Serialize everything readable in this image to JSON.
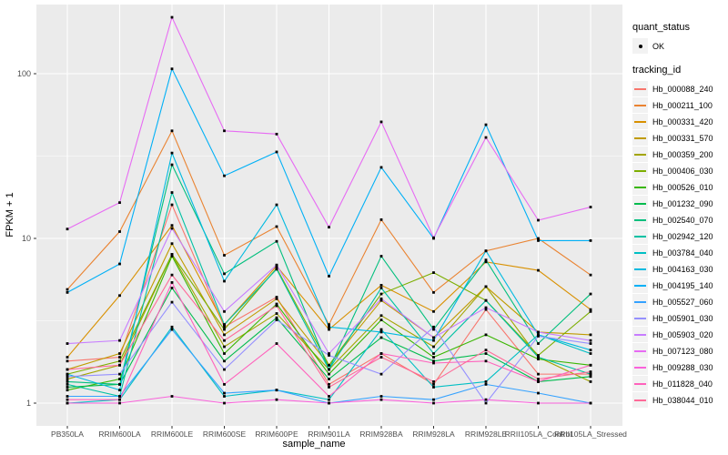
{
  "legend": {
    "quant_status_title": "quant_status",
    "ok_label": "OK",
    "tracking_title": "tracking_id"
  },
  "chart_data": {
    "type": "line",
    "xlabel": "sample_name",
    "ylabel": "FPKM + 1",
    "y_scale": "log10",
    "y_ticks": [
      "1",
      "10",
      "100"
    ],
    "y_minor_ticks": [
      3.162,
      31.62
    ],
    "ylim": [
      0.93,
      280
    ],
    "panel_bg": "#EBEBEB",
    "grid_color": "#FFFFFF",
    "point_color": "#000000",
    "tick_label_color": "#4d4d4d",
    "legend_position": "right",
    "categories": [
      "PB350LA",
      "RRIM600LA",
      "RRIM600LE",
      "RRIM600SE",
      "RRIM600PE",
      "RRIM901LA",
      "RRIM928BA",
      "RRIM928LA",
      "RRIM928LE",
      "RRII105LA_Control",
      "RRII105LA_Stressed"
    ],
    "series": [
      {
        "name": "Hb_000088_240",
        "color": "#F8766D",
        "values": [
          1.8,
          1.9,
          16,
          2.9,
          4.4,
          1.3,
          2.0,
          1.3,
          3.7,
          1.5,
          1.5
        ]
      },
      {
        "name": "Hb_000211_100",
        "color": "#EA8331",
        "values": [
          4.9,
          11,
          45,
          7.9,
          11.8,
          3.0,
          13,
          4.7,
          8.4,
          10,
          6.0
        ]
      },
      {
        "name": "Hb_000331_420",
        "color": "#D89000",
        "values": [
          1.9,
          4.5,
          12,
          3.0,
          6.8,
          2.8,
          5.2,
          3.6,
          7.2,
          6.4,
          3.7
        ]
      },
      {
        "name": "Hb_000331_570",
        "color": "#C09B00",
        "values": [
          1.6,
          2.0,
          9.3,
          2.6,
          4.3,
          1.7,
          4.2,
          2.5,
          5.1,
          2.7,
          2.6
        ]
      },
      {
        "name": "Hb_000359_200",
        "color": "#A3A500",
        "values": [
          1.4,
          1.7,
          8.0,
          2.2,
          3.5,
          1.6,
          3.4,
          2.2,
          5.1,
          1.9,
          1.35
        ]
      },
      {
        "name": "Hb_000406_030",
        "color": "#7CAE00",
        "values": [
          1.5,
          1.8,
          8.0,
          2.8,
          6.6,
          1.7,
          4.6,
          6.2,
          4.2,
          1.95,
          3.6
        ]
      },
      {
        "name": "Hb_000526_010",
        "color": "#39B600",
        "values": [
          1.2,
          1.4,
          7.8,
          2.0,
          4.0,
          1.5,
          3.2,
          1.9,
          2.6,
          1.85,
          1.7
        ]
      },
      {
        "name": "Hb_001232_090",
        "color": "#00BB4E",
        "values": [
          1.25,
          1.3,
          5.0,
          1.8,
          3.3,
          1.4,
          2.5,
          1.8,
          2.0,
          1.35,
          1.45
        ]
      },
      {
        "name": "Hb_002540_070",
        "color": "#00BF7D",
        "values": [
          1.35,
          1.3,
          28,
          6.1,
          9.6,
          1.6,
          7.8,
          2.8,
          7.4,
          2.3,
          4.6
        ]
      },
      {
        "name": "Hb_002942_120",
        "color": "#00C1A3",
        "values": [
          1.3,
          1.1,
          19,
          3.0,
          6.5,
          1.6,
          5.0,
          2.0,
          4.2,
          1.9,
          1.5
        ]
      },
      {
        "name": "Hb_003784_040",
        "color": "#00BFC4",
        "values": [
          1.0,
          1.05,
          2.9,
          1.1,
          1.2,
          1.05,
          2.8,
          1.25,
          1.35,
          2.6,
          2.0
        ]
      },
      {
        "name": "Hb_004163_030",
        "color": "#00BAE0",
        "values": [
          1.5,
          1.2,
          33,
          5.5,
          16,
          2.9,
          2.7,
          2.4,
          8.4,
          2.6,
          2.1
        ]
      },
      {
        "name": "Hb_004195_140",
        "color": "#00B0F6",
        "values": [
          4.7,
          7.0,
          107,
          24,
          33.5,
          5.9,
          27,
          10,
          49,
          9.7,
          9.7
        ]
      },
      {
        "name": "Hb_005527_060",
        "color": "#35A2FF",
        "values": [
          1.1,
          1.1,
          2.8,
          1.15,
          1.2,
          1.0,
          1.1,
          1.05,
          1.3,
          1.15,
          1.0
        ]
      },
      {
        "name": "Hb_005901_030",
        "color": "#9590FF",
        "values": [
          1.45,
          1.5,
          4.1,
          1.6,
          3.2,
          1.95,
          1.5,
          2.9,
          1.0,
          2.55,
          2.3
        ]
      },
      {
        "name": "Hb_005903_020",
        "color": "#C77CFF",
        "values": [
          2.3,
          2.4,
          11.5,
          3.6,
          6.9,
          2.0,
          4.3,
          2.5,
          3.8,
          2.7,
          2.4
        ]
      },
      {
        "name": "Hb_007123_080",
        "color": "#E76BF3",
        "values": [
          11.4,
          16.5,
          220,
          45,
          43,
          11.7,
          51,
          10.1,
          41,
          12.9,
          15.5
        ]
      },
      {
        "name": "Hb_009288_030",
        "color": "#FA62DB",
        "values": [
          1.0,
          1.0,
          1.1,
          1.0,
          1.05,
          1.0,
          1.05,
          1.0,
          1.05,
          1.0,
          1.0
        ]
      },
      {
        "name": "Hb_011828_040",
        "color": "#FF62BC",
        "values": [
          1.05,
          1.05,
          5.4,
          1.3,
          2.3,
          1.1,
          2.0,
          1.75,
          1.8,
          1.35,
          1.7
        ]
      },
      {
        "name": "Hb_038044_010",
        "color": "#FF6A98",
        "values": [
          1.6,
          1.7,
          6.0,
          2.4,
          3.9,
          1.25,
          1.9,
          1.35,
          2.1,
          1.4,
          1.55
        ]
      }
    ]
  }
}
